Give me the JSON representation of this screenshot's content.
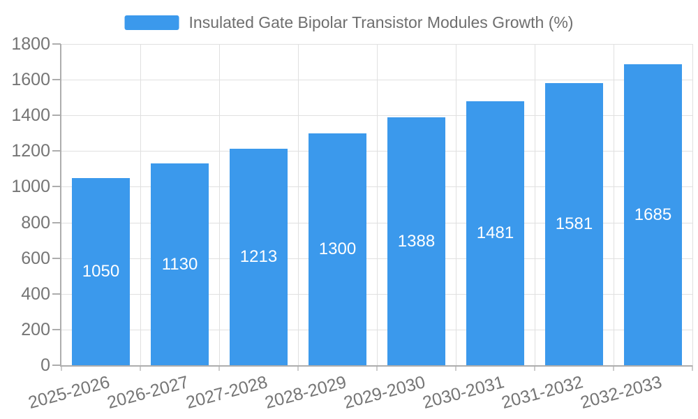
{
  "chart": {
    "legend_label": "Insulated Gate Bipolar Transistor Modules Growth (%)",
    "colors": {
      "bar": "#3B99EC",
      "grid": "#E0E0E0",
      "axis": "#ADADAD",
      "minor_tick": "#CCCCCC",
      "text": "#757575",
      "legend_text": "#6E6E6E",
      "value_label": "#FFFFFF"
    }
  },
  "chart_data": {
    "type": "bar",
    "title": "Insulated Gate Bipolar Transistor Modules Growth (%)",
    "series": [
      {
        "name": "Insulated Gate Bipolar Transistor Modules Growth (%)",
        "values": [
          1050,
          1130,
          1213,
          1300,
          1388,
          1481,
          1581,
          1685
        ]
      }
    ],
    "categories": [
      "2025-2026",
      "2026-2027",
      "2027-2028",
      "2028-2029",
      "2029-2030",
      "2030-2031",
      "2031-2032",
      "2032-2033"
    ],
    "value_labels_shown": true,
    "value_label_position": "inside-center",
    "xlabel": "",
    "ylabel": "",
    "ylim": [
      0,
      1800
    ],
    "ytick_step": 200,
    "yticks": [
      0,
      200,
      400,
      600,
      800,
      1000,
      1200,
      1400,
      1600,
      1800
    ],
    "grid": true,
    "legend_position": "top-center",
    "xlabel_rotation_deg": -15
  }
}
